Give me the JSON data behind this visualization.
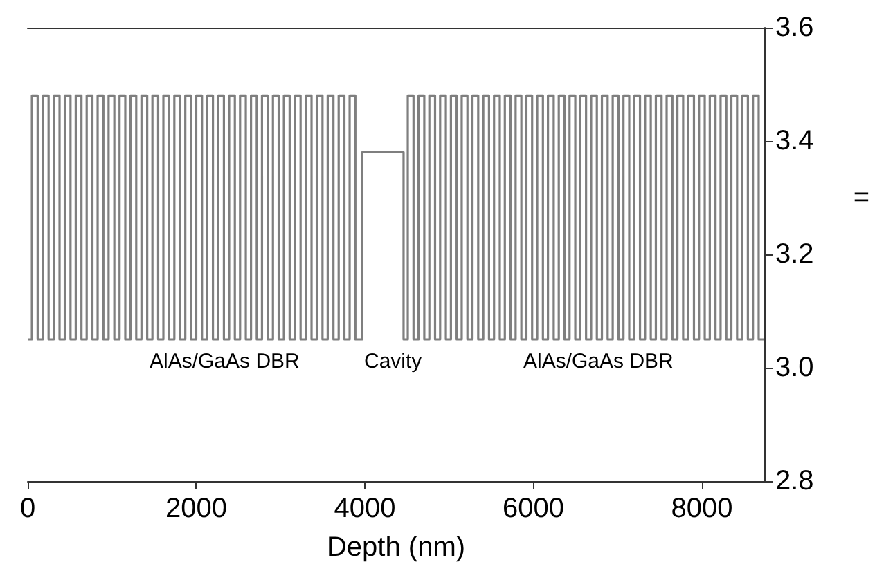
{
  "chart_data": {
    "type": "step",
    "xlabel": "Depth (nm)",
    "x": [
      0,
      50,
      118,
      180,
      248,
      310,
      378,
      440,
      508,
      570,
      638,
      700,
      768,
      830,
      898,
      960,
      1028,
      1090,
      1158,
      1220,
      1288,
      1350,
      1418,
      1480,
      1548,
      1610,
      1678,
      1740,
      1808,
      1870,
      1938,
      2000,
      2068,
      2130,
      2198,
      2260,
      2328,
      2390,
      2458,
      2520,
      2588,
      2650,
      2718,
      2780,
      2848,
      2910,
      2978,
      3040,
      3108,
      3170,
      3238,
      3300,
      3368,
      3430,
      3498,
      3560,
      3628,
      3690,
      3758,
      3820,
      3888,
      3970,
      4460,
      4510,
      4578,
      4638,
      4706,
      4766,
      4834,
      4894,
      4962,
      5022,
      5090,
      5150,
      5218,
      5278,
      5346,
      5406,
      5474,
      5534,
      5602,
      5662,
      5730,
      5790,
      5858,
      5918,
      5986,
      6046,
      6114,
      6174,
      6242,
      6302,
      6370,
      6430,
      6498,
      6558,
      6626,
      6686,
      6754,
      6814,
      6882,
      6942,
      7010,
      7070,
      7138,
      7198,
      7266,
      7326,
      7394,
      7454,
      7522,
      7582,
      7650,
      7710,
      7778,
      7838,
      7906,
      7966,
      8034,
      8094,
      8162,
      8222,
      8290,
      8350,
      8418,
      8478,
      8546,
      8606,
      8674,
      8740
    ],
    "values": [
      3.05,
      3.48,
      3.05,
      3.48,
      3.05,
      3.48,
      3.05,
      3.48,
      3.05,
      3.48,
      3.05,
      3.48,
      3.05,
      3.48,
      3.05,
      3.48,
      3.05,
      3.48,
      3.05,
      3.48,
      3.05,
      3.48,
      3.05,
      3.48,
      3.05,
      3.48,
      3.05,
      3.48,
      3.05,
      3.48,
      3.05,
      3.48,
      3.05,
      3.48,
      3.05,
      3.48,
      3.05,
      3.48,
      3.05,
      3.48,
      3.05,
      3.48,
      3.05,
      3.48,
      3.05,
      3.48,
      3.05,
      3.48,
      3.05,
      3.48,
      3.05,
      3.48,
      3.05,
      3.48,
      3.05,
      3.48,
      3.05,
      3.48,
      3.05,
      3.48,
      3.05,
      3.38,
      3.05,
      3.48,
      3.05,
      3.48,
      3.05,
      3.48,
      3.05,
      3.48,
      3.05,
      3.48,
      3.05,
      3.48,
      3.05,
      3.48,
      3.05,
      3.48,
      3.05,
      3.48,
      3.05,
      3.48,
      3.05,
      3.48,
      3.05,
      3.48,
      3.05,
      3.48,
      3.05,
      3.48,
      3.05,
      3.48,
      3.05,
      3.48,
      3.05,
      3.48,
      3.05,
      3.48,
      3.05,
      3.48,
      3.05,
      3.48,
      3.05,
      3.48,
      3.05,
      3.48,
      3.05,
      3.48,
      3.05,
      3.48,
      3.05,
      3.48,
      3.05,
      3.48,
      3.05,
      3.48,
      3.05,
      3.48,
      3.05,
      3.48,
      3.05,
      3.48,
      3.05,
      3.48,
      3.05,
      3.48,
      3.05,
      3.48,
      3.05,
      3.05
    ],
    "color": "#7f7f7f",
    "xlim": [
      0,
      8740
    ],
    "xticks": [
      0,
      2000,
      4000,
      6000,
      8000
    ],
    "ylim": [
      2.8,
      3.6
    ],
    "yticks": [
      2.8,
      {
        "value": 3.0,
        "label": "3.0"
      },
      3.2,
      3.4,
      3.6
    ],
    "grid": false,
    "marker": "none",
    "line_style": "solid",
    "annotations": [
      "AlAs/GaAs DBR",
      "Cavity",
      "AlAs/GaAs DBR",
      "="
    ]
  }
}
